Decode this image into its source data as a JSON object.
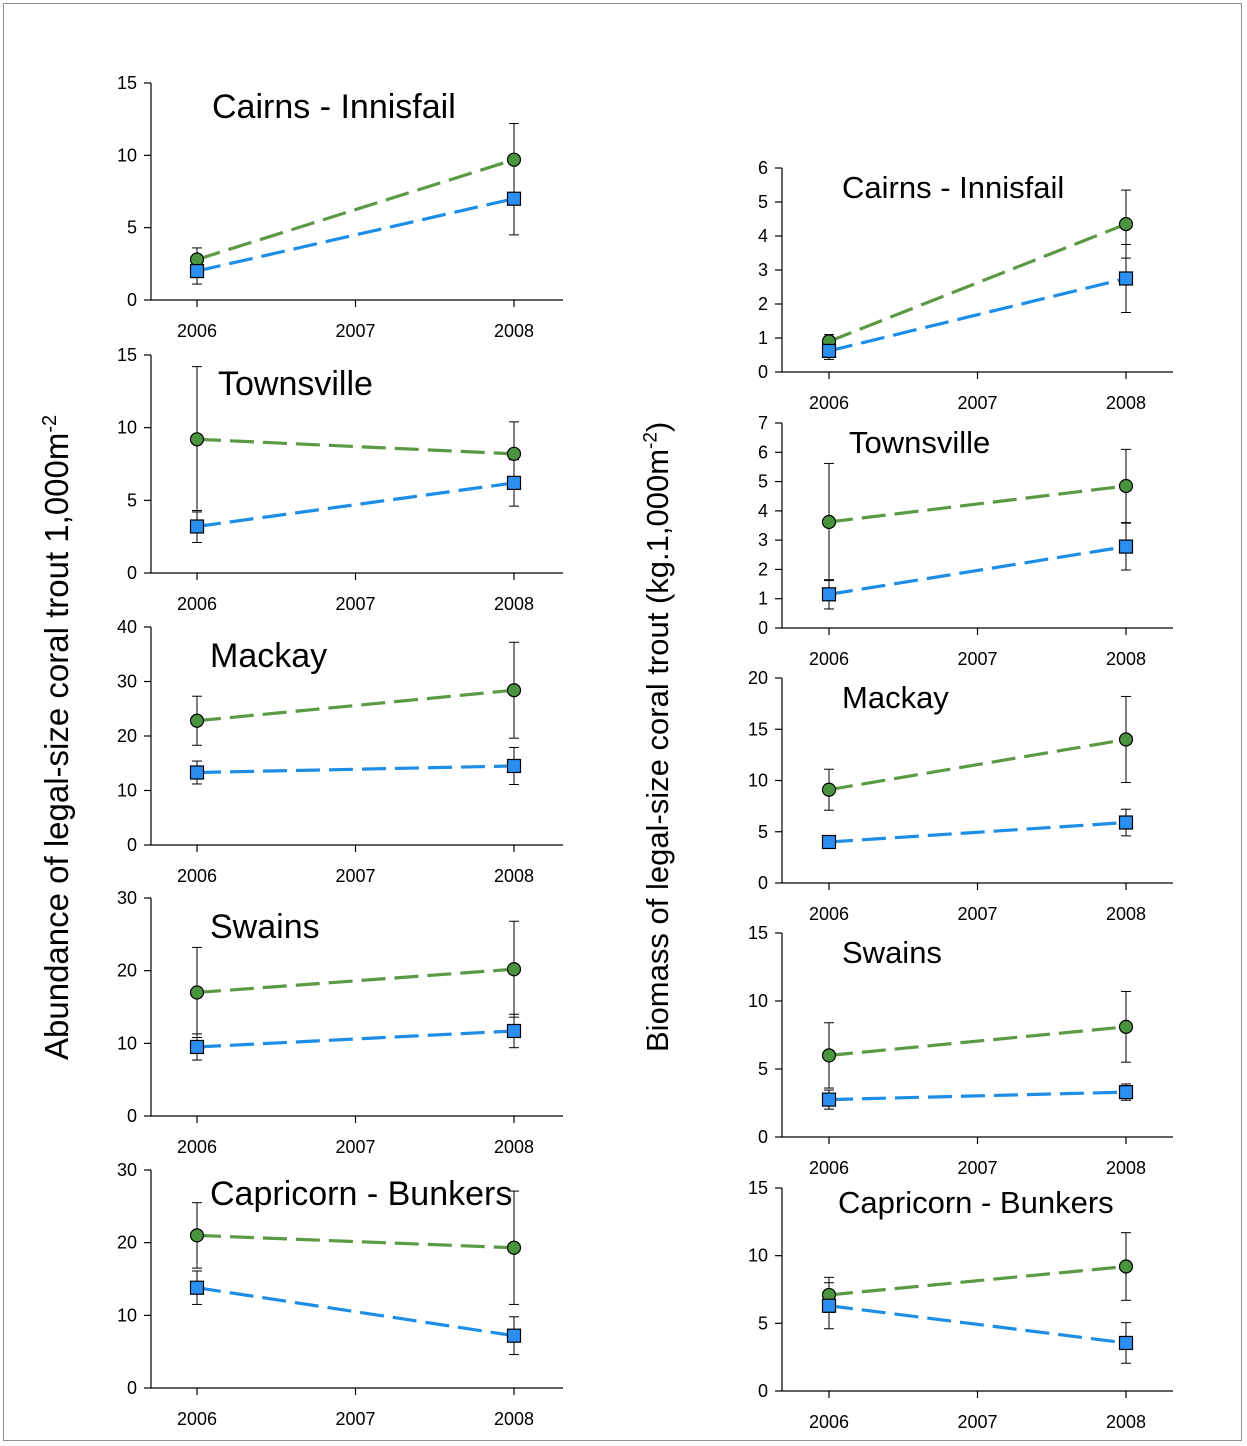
{
  "figure": {
    "y_label_left": "Abundance of legal-size coral trout 1,000m",
    "y_label_left_sup": "-2",
    "y_label_right": "Biomass of legal-size coral trout (kg.1,000m",
    "y_label_right_sup": "-2",
    "y_label_right_close": ")"
  },
  "colors": {
    "green_series": "#5b9a44",
    "green_marker": "#4a9440",
    "blue_series": "#1d8ee8",
    "blue_marker": "#2a8ff0"
  },
  "chart_data": [
    {
      "type": "line",
      "column": "left",
      "title": "Cairns - Innisfail",
      "x": [
        2006,
        2008
      ],
      "xticks": [
        2006,
        2007,
        2008
      ],
      "xlim": [
        2005.7,
        2008.2
      ],
      "ylim": [
        0,
        15
      ],
      "yticks": [
        0,
        5,
        10,
        15
      ],
      "series": [
        {
          "marker": "circle",
          "color": "green",
          "values": [
            2.8,
            9.7
          ],
          "err_low": [
            0.8,
            2.5
          ],
          "err_high": [
            0.8,
            2.5
          ]
        },
        {
          "marker": "square",
          "color": "blue",
          "values": [
            2.0,
            7.0
          ],
          "err_low": [
            0.9,
            2.5
          ],
          "err_high": [
            0.9,
            2.5
          ]
        }
      ]
    },
    {
      "type": "line",
      "column": "left",
      "title": "Townsville",
      "x": [
        2006,
        2008
      ],
      "xticks": [
        2006,
        2007,
        2008
      ],
      "xlim": [
        2005.7,
        2008.2
      ],
      "ylim": [
        0,
        15
      ],
      "yticks": [
        0,
        5,
        10,
        15
      ],
      "series": [
        {
          "marker": "circle",
          "color": "green",
          "values": [
            9.2,
            8.2
          ],
          "err_low": [
            5.0,
            2.2
          ],
          "err_high": [
            5.0,
            2.2
          ]
        },
        {
          "marker": "square",
          "color": "blue",
          "values": [
            3.2,
            6.2
          ],
          "err_low": [
            1.1,
            1.6
          ],
          "err_high": [
            1.1,
            1.6
          ]
        }
      ]
    },
    {
      "type": "line",
      "column": "left",
      "title": "Mackay",
      "x": [
        2006,
        2008
      ],
      "xticks": [
        2006,
        2007,
        2008
      ],
      "xlim": [
        2005.7,
        2008.2
      ],
      "ylim": [
        0,
        40
      ],
      "yticks": [
        0,
        10,
        20,
        30,
        40
      ],
      "series": [
        {
          "marker": "circle",
          "color": "green",
          "values": [
            22.8,
            28.4
          ],
          "err_low": [
            4.5,
            8.8
          ],
          "err_high": [
            4.5,
            8.8
          ]
        },
        {
          "marker": "square",
          "color": "blue",
          "values": [
            13.3,
            14.5
          ],
          "err_low": [
            2.1,
            3.4
          ],
          "err_high": [
            2.1,
            3.4
          ]
        }
      ]
    },
    {
      "type": "line",
      "column": "left",
      "title": "Swains",
      "x": [
        2006,
        2008
      ],
      "xticks": [
        2006,
        2007,
        2008
      ],
      "xlim": [
        2005.7,
        2008.2
      ],
      "ylim": [
        0,
        30
      ],
      "yticks": [
        0,
        10,
        20,
        30
      ],
      "series": [
        {
          "marker": "circle",
          "color": "green",
          "values": [
            17.0,
            20.2
          ],
          "err_low": [
            6.2,
            6.6
          ],
          "err_high": [
            6.2,
            6.6
          ]
        },
        {
          "marker": "square",
          "color": "blue",
          "values": [
            9.5,
            11.7
          ],
          "err_low": [
            1.8,
            2.3
          ],
          "err_high": [
            1.8,
            2.3
          ]
        }
      ]
    },
    {
      "type": "line",
      "column": "left",
      "title": "Capricorn - Bunkers",
      "x": [
        2006,
        2008
      ],
      "xticks": [
        2006,
        2007,
        2008
      ],
      "xlim": [
        2005.7,
        2008.2
      ],
      "ylim": [
        0,
        30
      ],
      "yticks": [
        0,
        10,
        20,
        30
      ],
      "series": [
        {
          "marker": "circle",
          "color": "green",
          "values": [
            21.0,
            19.3
          ],
          "err_low": [
            4.5,
            7.8
          ],
          "err_high": [
            4.5,
            7.8
          ]
        },
        {
          "marker": "square",
          "color": "blue",
          "values": [
            13.8,
            7.2
          ],
          "err_low": [
            2.3,
            2.6
          ],
          "err_high": [
            2.3,
            2.6
          ]
        }
      ]
    },
    {
      "type": "line",
      "column": "right",
      "title": "Cairns - Innisfail",
      "x": [
        2006,
        2008
      ],
      "xticks": [
        2006,
        2007,
        2008
      ],
      "xlim": [
        2005.7,
        2008.2
      ],
      "ylim": [
        0,
        6
      ],
      "yticks": [
        0,
        1,
        2,
        3,
        4,
        5,
        6
      ],
      "series": [
        {
          "marker": "circle",
          "color": "green",
          "values": [
            0.9,
            4.35
          ],
          "err_low": [
            0.2,
            1.0
          ],
          "err_high": [
            0.2,
            1.0
          ]
        },
        {
          "marker": "square",
          "color": "blue",
          "values": [
            0.62,
            2.75
          ],
          "err_low": [
            0.25,
            1.0
          ],
          "err_high": [
            0.25,
            1.0
          ]
        }
      ]
    },
    {
      "type": "line",
      "column": "right",
      "title": "Townsville",
      "x": [
        2006,
        2008
      ],
      "xticks": [
        2006,
        2007,
        2008
      ],
      "xlim": [
        2005.7,
        2008.2
      ],
      "ylim": [
        0,
        7
      ],
      "yticks": [
        0,
        1,
        2,
        3,
        4,
        5,
        6,
        7
      ],
      "series": [
        {
          "marker": "circle",
          "color": "green",
          "values": [
            3.62,
            4.85
          ],
          "err_low": [
            2.0,
            1.25
          ],
          "err_high": [
            2.0,
            1.25
          ]
        },
        {
          "marker": "square",
          "color": "blue",
          "values": [
            1.15,
            2.78
          ],
          "err_low": [
            0.5,
            0.8
          ],
          "err_high": [
            0.5,
            0.8
          ]
        }
      ]
    },
    {
      "type": "line",
      "column": "right",
      "title": "Mackay",
      "x": [
        2006,
        2008
      ],
      "xticks": [
        2006,
        2007,
        2008
      ],
      "xlim": [
        2005.7,
        2008.2
      ],
      "ylim": [
        0,
        20
      ],
      "yticks": [
        0,
        5,
        10,
        15,
        20
      ],
      "series": [
        {
          "marker": "circle",
          "color": "green",
          "values": [
            9.1,
            14.0
          ],
          "err_low": [
            2.0,
            4.2
          ],
          "err_high": [
            2.0,
            4.2
          ]
        },
        {
          "marker": "square",
          "color": "blue",
          "values": [
            4.0,
            5.9
          ],
          "err_low": [
            0.2,
            1.3
          ],
          "err_high": [
            0.2,
            1.3
          ]
        }
      ]
    },
    {
      "type": "line",
      "column": "right",
      "title": "Swains",
      "x": [
        2006,
        2008
      ],
      "xticks": [
        2006,
        2007,
        2008
      ],
      "xlim": [
        2005.7,
        2008.2
      ],
      "ylim": [
        0,
        15
      ],
      "yticks": [
        0,
        5,
        10,
        15
      ],
      "series": [
        {
          "marker": "circle",
          "color": "green",
          "values": [
            6.0,
            8.1
          ],
          "err_low": [
            2.4,
            2.6
          ],
          "err_high": [
            2.4,
            2.6
          ]
        },
        {
          "marker": "square",
          "color": "blue",
          "values": [
            2.75,
            3.3
          ],
          "err_low": [
            0.7,
            0.6
          ],
          "err_high": [
            0.7,
            0.6
          ]
        }
      ]
    },
    {
      "type": "line",
      "column": "right",
      "title": "Capricorn - Bunkers",
      "x": [
        2006,
        2008
      ],
      "xticks": [
        2006,
        2007,
        2008
      ],
      "xlim": [
        2005.7,
        2008.2
      ],
      "ylim": [
        0,
        15
      ],
      "yticks": [
        0,
        5,
        10,
        15
      ],
      "series": [
        {
          "marker": "circle",
          "color": "green",
          "values": [
            7.1,
            9.2
          ],
          "err_low": [
            1.3,
            2.5
          ],
          "err_high": [
            1.3,
            2.5
          ]
        },
        {
          "marker": "square",
          "color": "blue",
          "values": [
            6.3,
            3.55
          ],
          "err_low": [
            1.7,
            1.5
          ],
          "err_high": [
            1.7,
            1.5
          ]
        }
      ]
    }
  ]
}
